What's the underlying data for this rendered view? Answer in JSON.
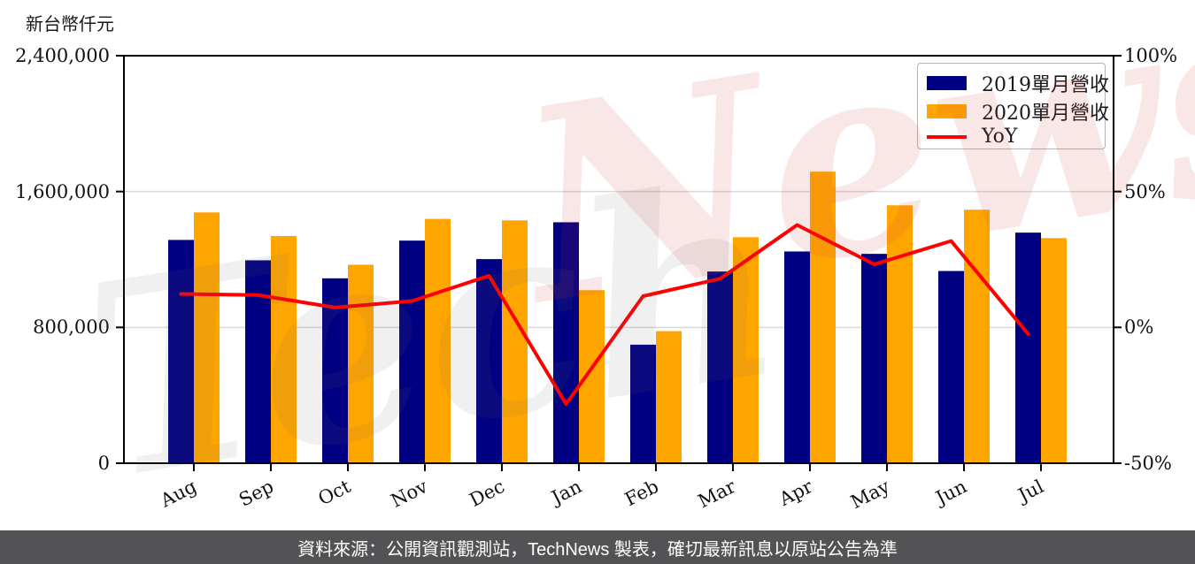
{
  "unit_label": "新台幣仟元",
  "legend": {
    "items": [
      {
        "label": "2019單月營收",
        "color": "#000082",
        "marker": "rect"
      },
      {
        "label": "2020單月營收",
        "color": "#FFA500",
        "marker": "rect"
      },
      {
        "label": "YoY",
        "color": "#FF0000",
        "marker": "line"
      }
    ]
  },
  "watermark": {
    "part1": "Tech",
    "part2": "News"
  },
  "footer": {
    "text": "資料來源：公開資訊觀測站，TechNews 製表，確切最新訊息以原站公告為準"
  },
  "chart_data": {
    "type": "bar",
    "subtype": "grouped-bars-with-line",
    "title": "",
    "categories": [
      "Aug",
      "Sep",
      "Oct",
      "Nov",
      "Dec",
      "Jan",
      "Feb",
      "Mar",
      "Apr",
      "May",
      "Jun",
      "Jul"
    ],
    "series": [
      {
        "name": "2019單月營收",
        "type": "bar",
        "axis": "left",
        "color": "#000082",
        "values": [
          1315000,
          1195000,
          1089000,
          1311000,
          1202000,
          1419000,
          698000,
          1129000,
          1247000,
          1233000,
          1132000,
          1358000
        ]
      },
      {
        "name": "2020單月營收",
        "type": "bar",
        "axis": "left",
        "color": "#FFA500",
        "values": [
          1477000,
          1338000,
          1169000,
          1439000,
          1430000,
          1019000,
          778000,
          1331000,
          1717000,
          1519000,
          1493000,
          1326000
        ]
      },
      {
        "name": "YoY",
        "type": "line",
        "axis": "right",
        "color": "#FF0000",
        "values_pct": [
          12.3,
          11.9,
          7.3,
          9.7,
          19.0,
          -28.2,
          11.5,
          17.9,
          37.7,
          23.2,
          31.8,
          -2.4
        ]
      }
    ],
    "left_axis": {
      "label": "新台幣仟元",
      "range": [
        0,
        2400000
      ],
      "tick_labels": [
        "2,400,000",
        "1,600,000",
        "800,000",
        "0"
      ]
    },
    "right_axis": {
      "range_pct": [
        -50,
        100
      ],
      "tick_labels": [
        "100%",
        "50%",
        "0%",
        "-50%"
      ]
    },
    "grid": "horizontal",
    "legend_position": "upper right",
    "grid_color": "#d9d9d9",
    "spine_color": "#000000"
  }
}
